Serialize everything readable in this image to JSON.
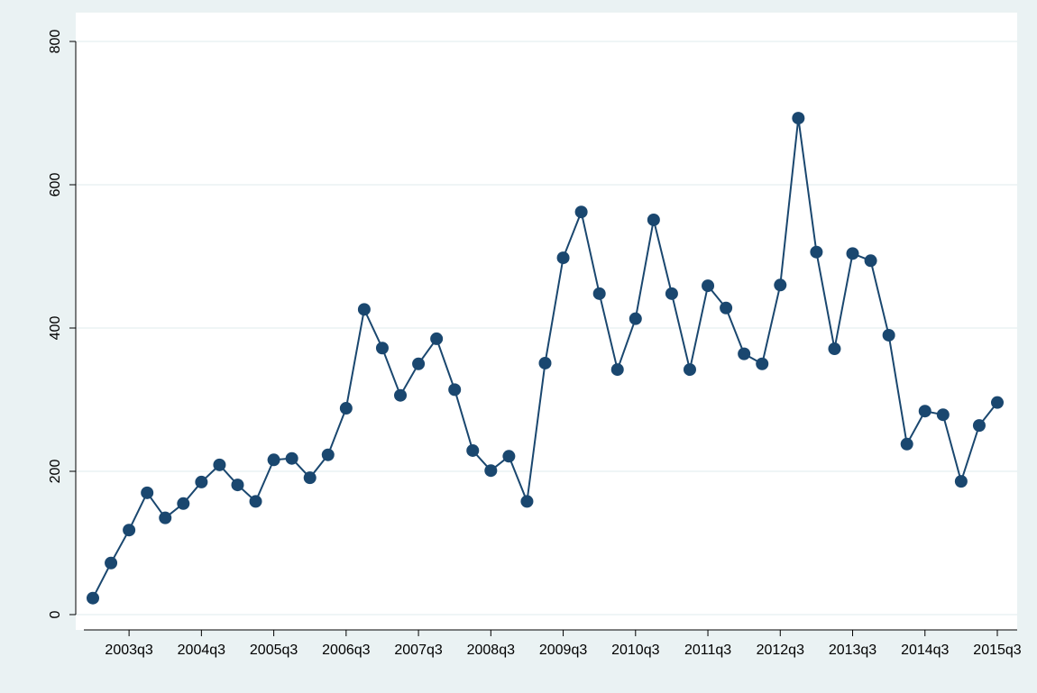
{
  "chart_data": {
    "type": "line",
    "categories": [
      null,
      null,
      "2003q3",
      null,
      null,
      null,
      "2004q3",
      null,
      null,
      null,
      "2005q3",
      null,
      null,
      null,
      "2006q3",
      null,
      null,
      null,
      "2007q3",
      null,
      null,
      null,
      "2008q3",
      null,
      null,
      null,
      "2009q3",
      null,
      null,
      null,
      "2010q3",
      null,
      null,
      null,
      "2011q3",
      null,
      null,
      null,
      "2012q3",
      null,
      null,
      null,
      "2013q3",
      null,
      null,
      null,
      "2014q3",
      null,
      null,
      null,
      "2015q3"
    ],
    "values": [
      23,
      72,
      118,
      170,
      135,
      155,
      185,
      209,
      181,
      158,
      216,
      218,
      191,
      223,
      288,
      426,
      372,
      306,
      350,
      385,
      314,
      229,
      201,
      221,
      158,
      351,
      498,
      562,
      448,
      342,
      413,
      551,
      448,
      342,
      459,
      428,
      364,
      350,
      460,
      693,
      506,
      371,
      504,
      494,
      390,
      238,
      284,
      279,
      186,
      264,
      296
    ],
    "color": "#1a476f",
    "ylim": [
      0,
      800
    ],
    "yticks": [
      0,
      200,
      400,
      600,
      800
    ],
    "grid": true
  }
}
